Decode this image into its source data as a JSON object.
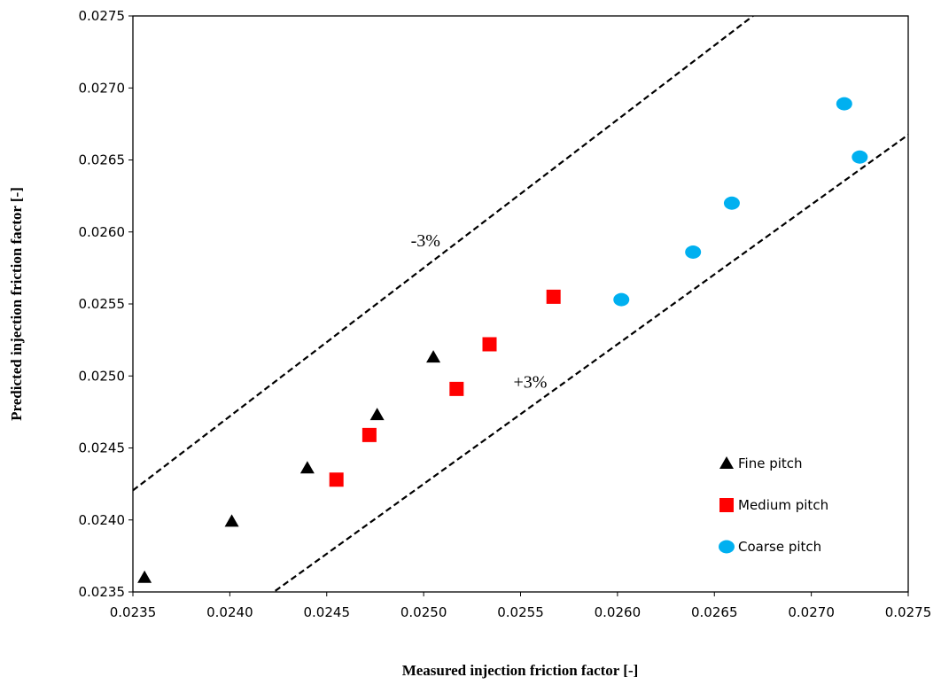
{
  "chart_data": {
    "type": "scatter",
    "xlabel": "Measured injection friction factor [-]",
    "ylabel": "Predicted injection friction factor [-]",
    "xlim": [
      0.0235,
      0.0275
    ],
    "ylim": [
      0.0235,
      0.0275
    ],
    "x_ticks": [
      "0.0235",
      "0.0240",
      "0.0245",
      "0.0250",
      "0.0255",
      "0.0260",
      "0.0265",
      "0.0270",
      "0.0275"
    ],
    "y_ticks": [
      "0.0235",
      "0.0240",
      "0.0245",
      "0.0250",
      "0.0255",
      "0.0260",
      "0.0265",
      "0.0270",
      "0.0275"
    ],
    "grid": false,
    "legend_position": "bottom-right",
    "series": [
      {
        "name": "Fine pitch",
        "marker": "triangle",
        "color": "#000000",
        "points": [
          [
            0.02356,
            0.0236
          ],
          [
            0.02401,
            0.02399
          ],
          [
            0.0244,
            0.02436
          ],
          [
            0.02476,
            0.02473
          ],
          [
            0.02505,
            0.02513
          ]
        ]
      },
      {
        "name": "Medium pitch",
        "marker": "square",
        "color": "#ff0000",
        "points": [
          [
            0.02455,
            0.02428
          ],
          [
            0.02472,
            0.02459
          ],
          [
            0.02517,
            0.02491
          ],
          [
            0.02534,
            0.02522
          ],
          [
            0.02567,
            0.02555
          ]
        ]
      },
      {
        "name": "Coarse pitch",
        "marker": "circle",
        "color": "#00b0f0",
        "points": [
          [
            0.02602,
            0.02553
          ],
          [
            0.02639,
            0.02586
          ],
          [
            0.02659,
            0.0262
          ],
          [
            0.02717,
            0.02689
          ],
          [
            0.02725,
            0.02652
          ]
        ]
      }
    ],
    "reference_lines": [
      {
        "label": "-3%",
        "slope": 1.03
      },
      {
        "label": "+3%",
        "slope": 0.97
      }
    ],
    "line_style": "dashed"
  }
}
